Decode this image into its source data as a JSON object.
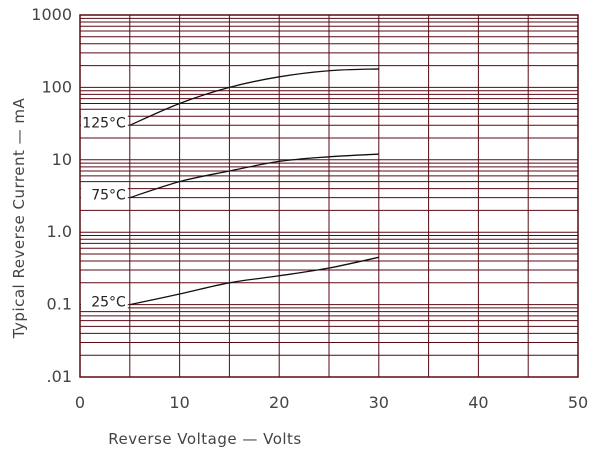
{
  "chart_data": {
    "type": "line",
    "xlabel": "Reverse Voltage — Volts",
    "ylabel": "Typical Reverse Current — mA",
    "xlim": [
      0,
      50
    ],
    "ylim": [
      0.01,
      1000
    ],
    "y_scale": "log",
    "grid": true,
    "x_ticks": [
      "0",
      "10",
      "20",
      "30",
      "40",
      "50"
    ],
    "y_ticks": [
      ".01",
      "0.1",
      "1.0",
      "10",
      "100",
      "1000"
    ],
    "series": [
      {
        "name": "125°C",
        "x": [
          5,
          10,
          15,
          20,
          25,
          30
        ],
        "y": [
          30,
          60,
          100,
          140,
          170,
          180
        ]
      },
      {
        "name": "75°C",
        "x": [
          5,
          10,
          15,
          20,
          25,
          30
        ],
        "y": [
          3,
          5,
          7,
          9.5,
          11,
          12
        ]
      },
      {
        "name": "25°C",
        "x": [
          5,
          10,
          15,
          20,
          25,
          30
        ],
        "y": [
          0.1,
          0.14,
          0.2,
          0.25,
          0.32,
          0.45
        ]
      }
    ],
    "colors": {
      "grid": "#5a0a14",
      "curve": "#111111",
      "text": "#444444"
    }
  }
}
